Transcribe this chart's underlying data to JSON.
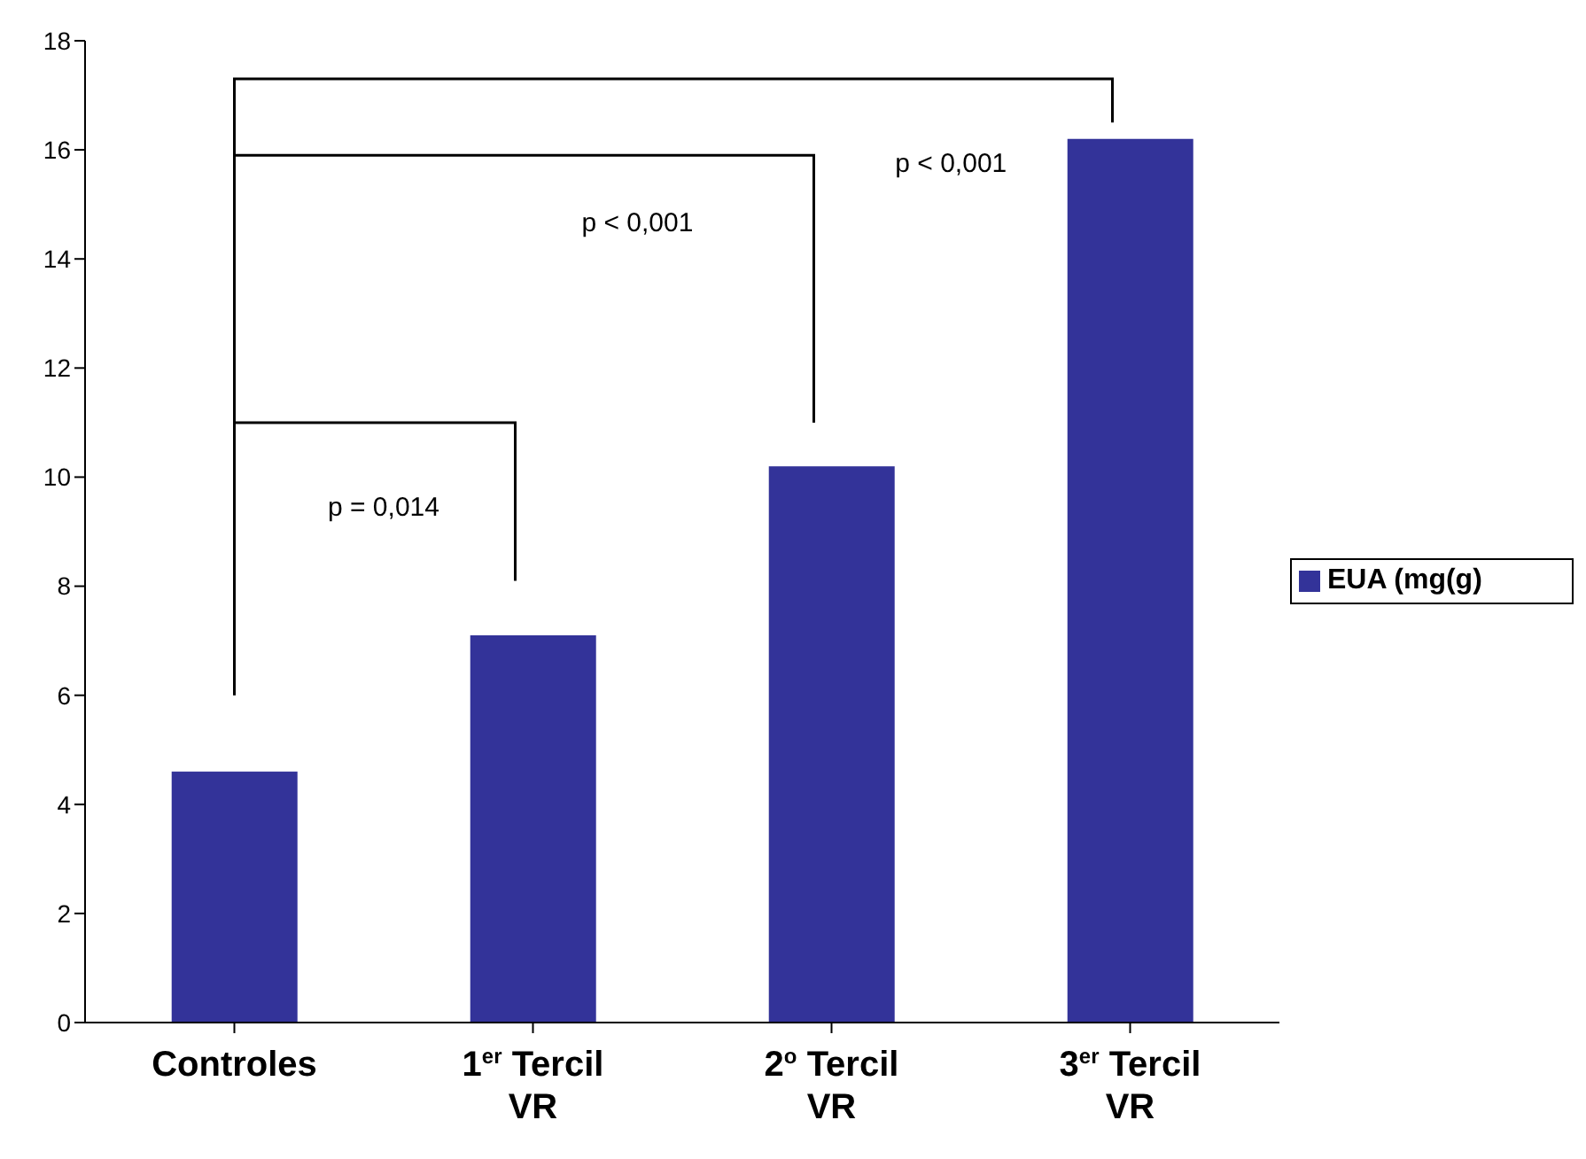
{
  "chart_data": {
    "type": "bar",
    "categories": [
      "Controles",
      "1$^{er}$ Tercil\nVR",
      "2$^{o}$ Tercil\nVR",
      "3$^{er}$ Tercil\nVR"
    ],
    "series": [
      {
        "name": "EUA (mg(g)",
        "color": "#333399",
        "values": [
          4.6,
          7.1,
          10.2,
          16.2
        ]
      }
    ],
    "ylim": [
      0,
      18
    ],
    "yticks": [
      0,
      2,
      4,
      6,
      8,
      10,
      12,
      14,
      16,
      18
    ],
    "grid": false,
    "legend": "right",
    "annotations": [
      "p = 0,014",
      "p < 0,001",
      "p < 0,001"
    ]
  }
}
